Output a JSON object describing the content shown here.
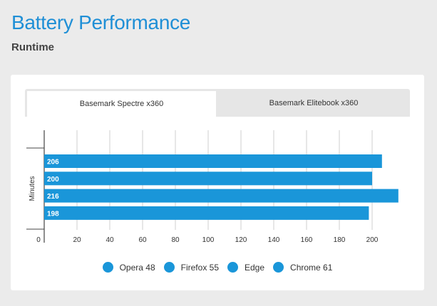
{
  "page": {
    "title": "Battery Performance",
    "subtitle": "Runtime"
  },
  "tabs": [
    {
      "label": "Basemark Spectre x360",
      "active": true
    },
    {
      "label": "Basemark Elitebook x360",
      "active": false
    }
  ],
  "colors": {
    "accent": "#1f8fd6",
    "bar": "#1a96d9"
  },
  "chart_data": {
    "type": "bar",
    "orientation": "horizontal",
    "ylabel": "Minutes",
    "xlim": [
      0,
      210
    ],
    "xticks": [
      0,
      20,
      40,
      60,
      80,
      100,
      120,
      140,
      160,
      180,
      200
    ],
    "grid": true,
    "legend_position": "bottom",
    "series": [
      {
        "name": "Opera 48",
        "value": 206
      },
      {
        "name": "Firefox 55",
        "value": 200
      },
      {
        "name": "Edge",
        "value": 216
      },
      {
        "name": "Chrome 61",
        "value": 198
      }
    ]
  }
}
